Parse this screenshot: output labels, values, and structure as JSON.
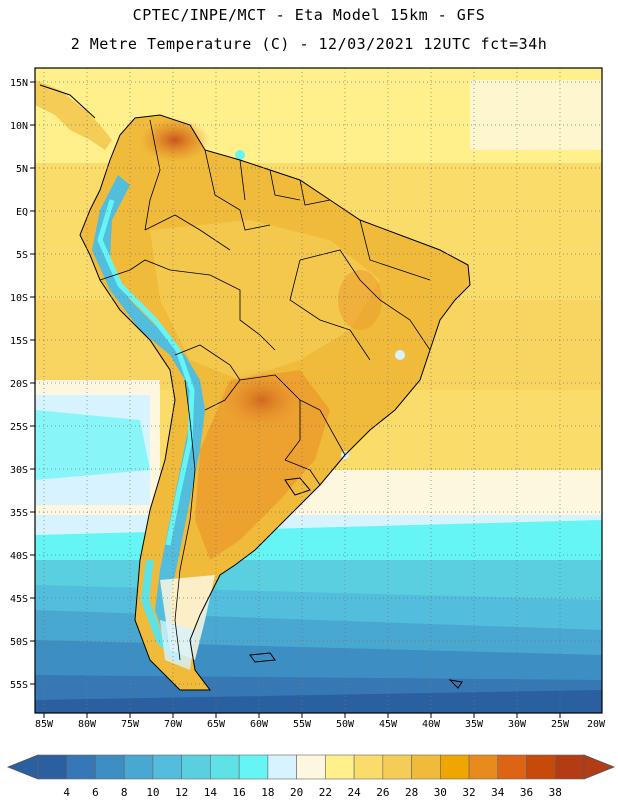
{
  "header": {
    "line1": "CPTEC/INPE/MCT -  Eta Model 15km - GFS",
    "line2": "2 Metre Temperature (C) - 12/03/2021 12UTC fct=34h"
  },
  "map": {
    "lon_range": [
      -86,
      -20
    ],
    "lat_range": [
      -58,
      17
    ],
    "lat_labels": [
      "15N",
      "10N",
      "5N",
      "EQ",
      "5S",
      "10S",
      "15S",
      "20S",
      "25S",
      "30S",
      "35S",
      "40S",
      "45S",
      "50S",
      "55S"
    ],
    "lon_labels": [
      "85W",
      "80W",
      "75W",
      "70W",
      "65W",
      "60W",
      "55W",
      "50W",
      "45W",
      "40W",
      "35W",
      "30W",
      "25W",
      "20W"
    ]
  },
  "colorbar": {
    "labels": [
      "4",
      "6",
      "8",
      "10",
      "12",
      "14",
      "16",
      "18",
      "20",
      "22",
      "24",
      "26",
      "28",
      "30",
      "32",
      "34",
      "36",
      "38"
    ],
    "colors": [
      "#2a5fa0",
      "#3578b5",
      "#3d8fc3",
      "#48a8d2",
      "#52bddc",
      "#5acfe0",
      "#5fe2e6",
      "#66f5f5",
      "#d6f3ff",
      "#fef7df",
      "#fff08c",
      "#fadc6a",
      "#f5cc55",
      "#f0bb3a",
      "#f0a500",
      "#e88a1e",
      "#dc6414",
      "#c84a0a",
      "#b43c14"
    ]
  }
}
